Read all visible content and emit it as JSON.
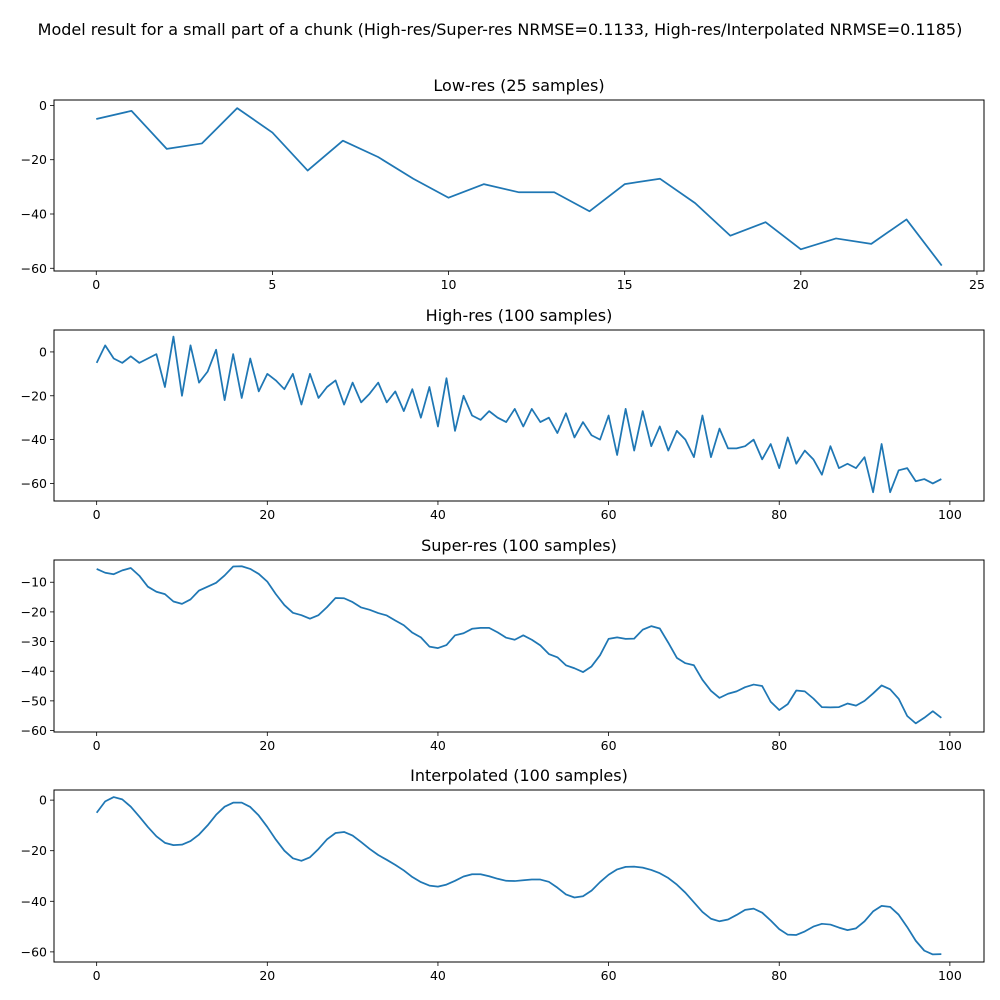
{
  "figure": {
    "suptitle": "Model result for a small part of a chunk (High-res/Super-res NRMSE=0.1133, High-res/Interpolated NRMSE=0.1185)",
    "line_color": "#1f77b4"
  },
  "chart_data": [
    {
      "type": "line",
      "title": "Low-res (25 samples)",
      "xlim": [
        -1.2,
        25.2
      ],
      "ylim": [
        -61,
        2
      ],
      "xticks": [
        0,
        5,
        10,
        15,
        20,
        25
      ],
      "yticks": [
        0,
        -20,
        -40,
        -60
      ],
      "series": [
        {
          "x": [
            0,
            1,
            2,
            3,
            4,
            5,
            6,
            7,
            8,
            9,
            10,
            11,
            12,
            13,
            14,
            15,
            16,
            17,
            18,
            19,
            20,
            21,
            22,
            23,
            24
          ],
          "y": [
            -5,
            -2,
            -16,
            -14,
            -1,
            -10,
            -24,
            -13,
            -19,
            -27,
            -34,
            -29,
            -32,
            -32,
            -39,
            -29,
            -27,
            -36,
            -48,
            -43,
            -53,
            -49,
            -51,
            -42,
            -59
          ]
        }
      ]
    },
    {
      "type": "line",
      "title": "High-res (100 samples)",
      "xlim": [
        -5,
        104
      ],
      "ylim": [
        -68,
        10
      ],
      "xticks": [
        0,
        20,
        40,
        60,
        80,
        100
      ],
      "yticks": [
        0,
        -20,
        -40,
        -60
      ],
      "series": [
        {
          "x": [
            0,
            1,
            2,
            3,
            4,
            5,
            6,
            7,
            8,
            9,
            10,
            11,
            12,
            13,
            14,
            15,
            16,
            17,
            18,
            19,
            20,
            21,
            22,
            23,
            24,
            25,
            26,
            27,
            28,
            29,
            30,
            31,
            32,
            33,
            34,
            35,
            36,
            37,
            38,
            39,
            40,
            41,
            42,
            43,
            44,
            45,
            46,
            47,
            48,
            49,
            50,
            51,
            52,
            53,
            54,
            55,
            56,
            57,
            58,
            59,
            60,
            61,
            62,
            63,
            64,
            65,
            66,
            67,
            68,
            69,
            70,
            71,
            72,
            73,
            74,
            75,
            76,
            77,
            78,
            79,
            80,
            81,
            82,
            83,
            84,
            85,
            86,
            87,
            88,
            89,
            90,
            91,
            92,
            93,
            94,
            95,
            96,
            97,
            98,
            99
          ],
          "y": [
            -5,
            3,
            -3,
            -5,
            -2,
            -5,
            -3,
            -1,
            -16,
            7,
            -20,
            3,
            -14,
            -9,
            1,
            -22,
            -1,
            -21,
            -3,
            -18,
            -10,
            -13,
            -17,
            -10,
            -24,
            -10,
            -21,
            -16,
            -13,
            -24,
            -14,
            -23,
            -19,
            -14,
            -23,
            -18,
            -27,
            -17,
            -30,
            -16,
            -34,
            -12,
            -36,
            -20,
            -29,
            -31,
            -27,
            -30,
            -32,
            -26,
            -34,
            -26,
            -32,
            -30,
            -37,
            -28,
            -39,
            -32,
            -38,
            -40,
            -29,
            -47,
            -26,
            -45,
            -27,
            -43,
            -34,
            -45,
            -36,
            -40,
            -48,
            -29,
            -48,
            -35,
            -44,
            -44,
            -43,
            -40,
            -49,
            -42,
            -53,
            -39,
            -51,
            -45,
            -49,
            -56,
            -43,
            -53,
            -51,
            -53,
            -48,
            -64,
            -42,
            -64,
            -54,
            -53,
            -59,
            -58,
            -60,
            -58
          ]
        }
      ]
    },
    {
      "type": "line",
      "title": "Super-res (100 samples)",
      "xlim": [
        -5,
        104
      ],
      "ylim": [
        -60.5,
        -2.5
      ],
      "xticks": [
        0,
        20,
        40,
        60,
        80,
        100
      ],
      "yticks": [
        -10,
        -20,
        -30,
        -40,
        -50,
        -60
      ],
      "series": [
        {
          "x": [
            0,
            1,
            2,
            3,
            4,
            5,
            6,
            7,
            8,
            9,
            10,
            11,
            12,
            13,
            14,
            15,
            16,
            17,
            18,
            19,
            20,
            21,
            22,
            23,
            24,
            25,
            26,
            27,
            28,
            29,
            30,
            31,
            32,
            33,
            34,
            35,
            36,
            37,
            38,
            39,
            40,
            41,
            42,
            43,
            44,
            45,
            46,
            47,
            48,
            49,
            50,
            51,
            52,
            53,
            54,
            55,
            56,
            57,
            58,
            59,
            60,
            61,
            62,
            63,
            64,
            65,
            66,
            67,
            68,
            69,
            70,
            71,
            72,
            73,
            74,
            75,
            76,
            77,
            78,
            79,
            80,
            81,
            82,
            83,
            84,
            85,
            86,
            87,
            88,
            89,
            90,
            91,
            92,
            93,
            94,
            95,
            96,
            97,
            98,
            99
          ],
          "y": [
            -5.5,
            -6.8,
            -7.3,
            -6,
            -5.2,
            -7.8,
            -11.5,
            -13.2,
            -14,
            -16.5,
            -17.3,
            -15.8,
            -12.8,
            -11.5,
            -10.2,
            -7.7,
            -4.7,
            -4.6,
            -5.5,
            -7.2,
            -9.8,
            -14,
            -17.7,
            -20.3,
            -21.1,
            -22.3,
            -21.1,
            -18.4,
            -15.3,
            -15.4,
            -16.7,
            -18.5,
            -19.3,
            -20.4,
            -21.2,
            -22.9,
            -24.5,
            -27,
            -28.6,
            -31.7,
            -32.2,
            -31.2,
            -27.9,
            -27.2,
            -25.7,
            -25.4,
            -25.4,
            -26.9,
            -28.7,
            -29.4,
            -27.9,
            -29.4,
            -31.3,
            -34.2,
            -35.3,
            -38,
            -39,
            -40.3,
            -38.4,
            -34.6,
            -29.1,
            -28.6,
            -29.1,
            -29,
            -26,
            -24.8,
            -25.6,
            -30.4,
            -35.5,
            -37.3,
            -38,
            -42.9,
            -46.6,
            -49,
            -47.6,
            -46.8,
            -45.4,
            -44.5,
            -45,
            -50.3,
            -53.1,
            -51.1,
            -46.5,
            -46.8,
            -49.2,
            -52.1,
            -52.2,
            -52.1,
            -50.9,
            -51.6,
            -50,
            -47.5,
            -44.8,
            -46.1,
            -49.3,
            -55.1,
            -57.6,
            -55.7,
            -53.5,
            -55.7
          ]
        }
      ]
    },
    {
      "type": "line",
      "title": "Interpolated (100 samples)",
      "xlim": [
        -5,
        104
      ],
      "ylim": [
        -64,
        4
      ],
      "xticks": [
        0,
        20,
        40,
        60,
        80,
        100
      ],
      "yticks": [
        0,
        -20,
        -40,
        -60
      ],
      "series": [
        {
          "x": [
            0,
            1,
            2,
            3,
            4,
            5,
            6,
            7,
            8,
            9,
            10,
            11,
            12,
            13,
            14,
            15,
            16,
            17,
            18,
            19,
            20,
            21,
            22,
            23,
            24,
            25,
            26,
            27,
            28,
            29,
            30,
            31,
            32,
            33,
            34,
            35,
            36,
            37,
            38,
            39,
            40,
            41,
            42,
            43,
            44,
            45,
            46,
            47,
            48,
            49,
            50,
            51,
            52,
            53,
            54,
            55,
            56,
            57,
            58,
            59,
            60,
            61,
            62,
            63,
            64,
            65,
            66,
            67,
            68,
            69,
            70,
            71,
            72,
            73,
            74,
            75,
            76,
            77,
            78,
            79,
            80,
            81,
            82,
            83,
            84,
            85,
            86,
            87,
            88,
            89,
            90,
            91,
            92,
            93,
            94,
            95,
            96,
            97,
            98,
            99
          ],
          "y": [
            -5,
            -0.5,
            1.2,
            0.3,
            -2.6,
            -6.5,
            -10.6,
            -14.3,
            -16.9,
            -17.8,
            -17.6,
            -16.2,
            -13.6,
            -10,
            -5.8,
            -2.6,
            -1,
            -1,
            -2.7,
            -6.1,
            -10.6,
            -15.6,
            -20,
            -23,
            -24,
            -22.6,
            -19.3,
            -15.5,
            -13,
            -12.6,
            -14,
            -16.6,
            -19.3,
            -21.7,
            -23.6,
            -25.6,
            -27.8,
            -30.4,
            -32.4,
            -33.8,
            -34.2,
            -33.4,
            -31.9,
            -30.2,
            -29.3,
            -29.3,
            -30.1,
            -31.1,
            -31.9,
            -32,
            -31.7,
            -31.4,
            -31.4,
            -32.3,
            -34.6,
            -37.3,
            -38.5,
            -38,
            -35.8,
            -32.4,
            -29.5,
            -27.4,
            -26.4,
            -26.3,
            -26.7,
            -27.6,
            -28.9,
            -30.8,
            -33.4,
            -36.6,
            -40.4,
            -44.2,
            -46.9,
            -47.9,
            -47.2,
            -45.4,
            -43.4,
            -42.9,
            -44.5,
            -47.6,
            -51,
            -53.2,
            -53.3,
            -51.9,
            -50,
            -48.9,
            -49.2,
            -50.4,
            -51.4,
            -50.7,
            -47.9,
            -44,
            -41.8,
            -42.2,
            -45.3,
            -50.2,
            -55.6,
            -59.5,
            -61,
            -60.9
          ]
        }
      ]
    }
  ]
}
